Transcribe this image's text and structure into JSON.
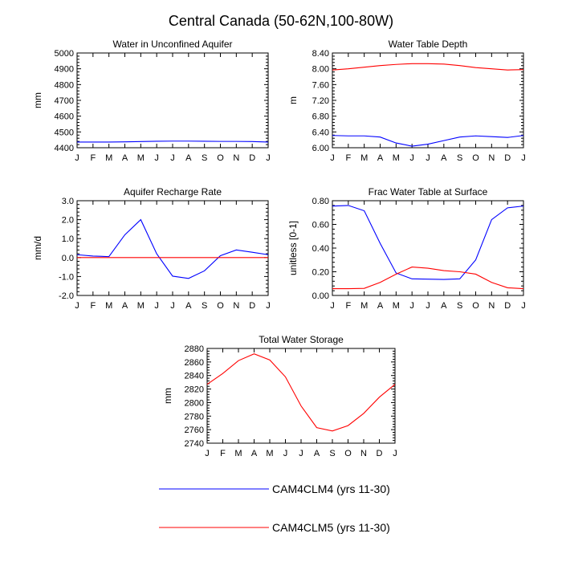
{
  "title": "Central Canada (50-62N,100-80W)",
  "months": [
    "J",
    "F",
    "M",
    "A",
    "M",
    "J",
    "J",
    "A",
    "S",
    "O",
    "N",
    "D",
    "J"
  ],
  "colors": {
    "series1": "#0000ff",
    "series2": "#ff0000",
    "axis": "#000000"
  },
  "legend": [
    {
      "label": "CAM4CLM4 (yrs 11-30)",
      "color": "#0000ff"
    },
    {
      "label": "CAM4CLM5 (yrs 11-30)",
      "color": "#ff0000"
    }
  ],
  "chart_data": [
    {
      "id": "unconfined",
      "type": "line",
      "title": "Water in Unconfined Aquifer",
      "ylabel": "mm",
      "ylim": [
        4400,
        5000
      ],
      "yticks": [
        4400,
        4500,
        4600,
        4700,
        4800,
        4900,
        5000
      ],
      "ytick_labels": [
        "4400",
        "4500",
        "4600",
        "4700",
        "4800",
        "4900",
        "5000"
      ],
      "series": [
        {
          "name": "CAM4CLM4 (yrs 11-30)",
          "color": "#0000ff",
          "values": [
            4436,
            4436,
            4436,
            4437,
            4439,
            4441,
            4442,
            4442,
            4441,
            4440,
            4440,
            4439,
            4436
          ]
        }
      ]
    },
    {
      "id": "wtd",
      "type": "line",
      "title": "Water Table Depth",
      "ylabel": "m",
      "ylim": [
        6.0,
        8.4
      ],
      "yticks": [
        6.0,
        6.4,
        6.8,
        7.2,
        7.6,
        8.0,
        8.4
      ],
      "ytick_labels": [
        "6.00",
        "6.40",
        "6.80",
        "7.20",
        "7.60",
        "8.00",
        "8.40"
      ],
      "series": [
        {
          "name": "CAM4CLM4 (yrs 11-30)",
          "color": "#0000ff",
          "values": [
            6.31,
            6.3,
            6.3,
            6.27,
            6.12,
            6.04,
            6.09,
            6.18,
            6.27,
            6.3,
            6.28,
            6.26,
            6.31
          ]
        },
        {
          "name": "CAM4CLM5 (yrs 11-30)",
          "color": "#ff0000",
          "values": [
            7.97,
            8.0,
            8.04,
            8.08,
            8.11,
            8.13,
            8.13,
            8.12,
            8.08,
            8.03,
            8.0,
            7.97,
            7.98
          ]
        }
      ]
    },
    {
      "id": "recharge",
      "type": "line",
      "title": "Aquifer Recharge Rate",
      "ylabel": "mm/d",
      "ylim": [
        -2.0,
        3.0
      ],
      "yticks": [
        -2.0,
        -1.0,
        0.0,
        1.0,
        2.0,
        3.0
      ],
      "ytick_labels": [
        "-2.0",
        "-1.0",
        "0.0",
        "1.0",
        "2.0",
        "3.0"
      ],
      "series": [
        {
          "name": "CAM4CLM4 (yrs 11-30)",
          "color": "#0000ff",
          "values": [
            0.15,
            0.08,
            0.05,
            1.2,
            2.0,
            0.2,
            -0.98,
            -1.1,
            -0.7,
            0.1,
            0.4,
            0.28,
            0.15
          ]
        },
        {
          "name": "CAM4CLM5 (yrs 11-30)",
          "color": "#ff0000",
          "values": [
            0.0,
            0.0,
            0.0,
            0.0,
            0.0,
            0.0,
            0.0,
            0.0,
            0.0,
            0.0,
            0.0,
            0.0,
            0.0
          ]
        }
      ]
    },
    {
      "id": "frac",
      "type": "line",
      "title": "Frac Water Table at Surface",
      "ylabel": "unitless [0-1]",
      "ylim": [
        0.0,
        0.8
      ],
      "yticks": [
        0.0,
        0.2,
        0.4,
        0.6,
        0.8
      ],
      "ytick_labels": [
        "0.00",
        "0.20",
        "0.40",
        "0.60",
        "0.80"
      ],
      "series": [
        {
          "name": "CAM4CLM4 (yrs 11-30)",
          "color": "#0000ff",
          "values": [
            0.755,
            0.76,
            0.715,
            0.44,
            0.19,
            0.14,
            0.138,
            0.135,
            0.14,
            0.3,
            0.64,
            0.74,
            0.755
          ]
        },
        {
          "name": "CAM4CLM5 (yrs 11-30)",
          "color": "#ff0000",
          "values": [
            0.057,
            0.057,
            0.06,
            0.11,
            0.18,
            0.24,
            0.23,
            0.21,
            0.2,
            0.18,
            0.11,
            0.065,
            0.057
          ]
        }
      ]
    },
    {
      "id": "storage",
      "type": "line",
      "title": "Total Water Storage",
      "ylabel": "mm",
      "ylim": [
        2740,
        2880
      ],
      "yticks": [
        2740,
        2760,
        2780,
        2800,
        2820,
        2840,
        2860,
        2880
      ],
      "ytick_labels": [
        "2740",
        "2760",
        "2780",
        "2800",
        "2820",
        "2840",
        "2860",
        "2880"
      ],
      "series": [
        {
          "name": "CAM4CLM5 (yrs 11-30)",
          "color": "#ff0000",
          "values": [
            2827,
            2843,
            2862,
            2872,
            2863,
            2838,
            2795,
            2763,
            2758,
            2766,
            2784,
            2808,
            2827
          ]
        }
      ]
    }
  ]
}
